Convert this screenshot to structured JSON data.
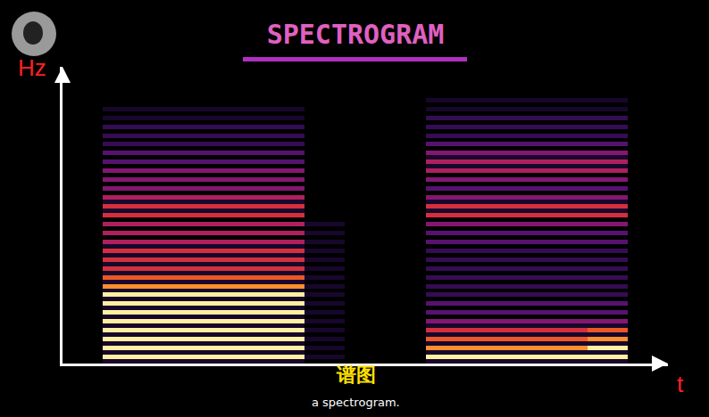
{
  "chart_data": {
    "type": "heatmap",
    "title": "SPECTROGRAM",
    "x_label": "t",
    "y_label": "Hz",
    "annotations": [
      "谱图",
      "a spectrogram."
    ],
    "grid": false,
    "tick_labels": false,
    "xlim": [
      -0.5,
      14.5
    ],
    "ylim": [
      -0.5,
      66.5
    ],
    "xticks": [],
    "yticks": [],
    "zlim": [
      0,
      9
    ],
    "x": [
      0,
      1,
      2,
      3,
      4,
      5,
      6,
      7,
      8,
      9,
      10,
      11,
      12,
      13,
      14
    ],
    "y": [
      0,
      1,
      2,
      3,
      4,
      5,
      6,
      7,
      8,
      9,
      10,
      11,
      12,
      13,
      14,
      15,
      16,
      17,
      18,
      19,
      20,
      21,
      22,
      23,
      24,
      25,
      26,
      27,
      28,
      29,
      30,
      31,
      32,
      33,
      34,
      35,
      36,
      37,
      38,
      39,
      40,
      41,
      42,
      43,
      44,
      45,
      46,
      47,
      48,
      49,
      50,
      51,
      52,
      53,
      54,
      55,
      56,
      57,
      58,
      59,
      60,
      61,
      62,
      63,
      64,
      65,
      66
    ],
    "z": [
      [
        0,
        1,
        1,
        1,
        1,
        1,
        0,
        0,
        0,
        1,
        1,
        1,
        1,
        1,
        0
      ],
      [
        0,
        9,
        9,
        9,
        9,
        9,
        1,
        0,
        0,
        9,
        9,
        9,
        9,
        9,
        0
      ],
      [
        0,
        1,
        1,
        1,
        1,
        1,
        0,
        0,
        0,
        1,
        1,
        1,
        1,
        1,
        0
      ],
      [
        0,
        9,
        9,
        9,
        9,
        9,
        1,
        0,
        0,
        8,
        8,
        8,
        8,
        9,
        0
      ],
      [
        0,
        1,
        1,
        1,
        1,
        1,
        0,
        0,
        0,
        1,
        1,
        1,
        1,
        1,
        0
      ],
      [
        0,
        9,
        9,
        9,
        9,
        9,
        1,
        0,
        0,
        7,
        7,
        7,
        7,
        8,
        0
      ],
      [
        0,
        1,
        1,
        1,
        1,
        1,
        0,
        0,
        0,
        1,
        1,
        1,
        1,
        1,
        0
      ],
      [
        0,
        9,
        9,
        9,
        9,
        9,
        1,
        0,
        0,
        6,
        6,
        6,
        6,
        7,
        0
      ],
      [
        0,
        1,
        1,
        1,
        1,
        1,
        0,
        0,
        0,
        1,
        1,
        1,
        1,
        1,
        0
      ],
      [
        0,
        9,
        9,
        9,
        9,
        9,
        1,
        0,
        0,
        4,
        4,
        4,
        4,
        4,
        0
      ],
      [
        0,
        1,
        1,
        1,
        1,
        1,
        0,
        0,
        0,
        0,
        0,
        0,
        0,
        0,
        0
      ],
      [
        0,
        9,
        9,
        9,
        9,
        9,
        1,
        0,
        0,
        3,
        3,
        3,
        3,
        3,
        0
      ],
      [
        0,
        1,
        1,
        1,
        1,
        1,
        0,
        0,
        0,
        0,
        0,
        0,
        0,
        0,
        0
      ],
      [
        0,
        9,
        9,
        9,
        9,
        9,
        1,
        0,
        0,
        3,
        3,
        3,
        3,
        3,
        0
      ],
      [
        0,
        1,
        1,
        1,
        1,
        1,
        0,
        0,
        0,
        0,
        0,
        0,
        0,
        0,
        0
      ],
      [
        0,
        9,
        9,
        9,
        9,
        9,
        1,
        0,
        0,
        2,
        2,
        2,
        2,
        2,
        0
      ],
      [
        0,
        1,
        1,
        1,
        1,
        1,
        0,
        0,
        0,
        0,
        0,
        0,
        0,
        0,
        0
      ],
      [
        0,
        8,
        8,
        8,
        8,
        8,
        1,
        0,
        0,
        2,
        2,
        2,
        2,
        2,
        0
      ],
      [
        0,
        1,
        1,
        1,
        1,
        1,
        0,
        0,
        0,
        0,
        0,
        0,
        0,
        0,
        0
      ],
      [
        0,
        7,
        7,
        7,
        7,
        7,
        1,
        0,
        0,
        2,
        2,
        2,
        2,
        2,
        0
      ],
      [
        0,
        1,
        1,
        1,
        1,
        1,
        0,
        0,
        0,
        0,
        0,
        0,
        0,
        0,
        0
      ],
      [
        0,
        6,
        6,
        6,
        6,
        6,
        1,
        0,
        0,
        2,
        2,
        2,
        2,
        2,
        0
      ],
      [
        0,
        1,
        1,
        1,
        1,
        1,
        0,
        0,
        0,
        0,
        0,
        0,
        0,
        0,
        0
      ],
      [
        0,
        6,
        6,
        6,
        6,
        6,
        1,
        0,
        0,
        2,
        2,
        2,
        2,
        2,
        0
      ],
      [
        0,
        1,
        1,
        1,
        1,
        1,
        0,
        0,
        0,
        0,
        0,
        0,
        0,
        0,
        0
      ],
      [
        0,
        6,
        6,
        6,
        6,
        6,
        1,
        0,
        0,
        2,
        2,
        2,
        2,
        2,
        0
      ],
      [
        0,
        1,
        1,
        1,
        1,
        1,
        0,
        0,
        0,
        0,
        0,
        0,
        0,
        0,
        0
      ],
      [
        0,
        5,
        5,
        5,
        5,
        5,
        1,
        0,
        0,
        3,
        3,
        3,
        3,
        3,
        0
      ],
      [
        0,
        0,
        0,
        0,
        0,
        0,
        0,
        0,
        0,
        0,
        0,
        0,
        0,
        0,
        0
      ],
      [
        0,
        5,
        5,
        5,
        5,
        5,
        1,
        0,
        0,
        3,
        3,
        3,
        3,
        3,
        0
      ],
      [
        0,
        0,
        0,
        0,
        0,
        0,
        0,
        0,
        0,
        0,
        0,
        0,
        0,
        0,
        0
      ],
      [
        0,
        5,
        5,
        5,
        5,
        5,
        1,
        0,
        0,
        4,
        4,
        4,
        4,
        4,
        0
      ],
      [
        0,
        0,
        0,
        0,
        0,
        0,
        0,
        0,
        0,
        0,
        0,
        0,
        0,
        0,
        0
      ],
      [
        0,
        6,
        6,
        6,
        6,
        6,
        0,
        0,
        0,
        6,
        6,
        6,
        6,
        6,
        0
      ],
      [
        0,
        1,
        1,
        1,
        1,
        1,
        0,
        0,
        0,
        1,
        1,
        1,
        1,
        1,
        0
      ],
      [
        0,
        6,
        6,
        6,
        6,
        6,
        0,
        0,
        0,
        6,
        6,
        6,
        6,
        6,
        0
      ],
      [
        0,
        1,
        1,
        1,
        1,
        1,
        0,
        0,
        0,
        1,
        1,
        1,
        1,
        1,
        0
      ],
      [
        0,
        5,
        5,
        5,
        5,
        5,
        0,
        0,
        0,
        4,
        4,
        4,
        4,
        4,
        0
      ],
      [
        0,
        0,
        0,
        0,
        0,
        0,
        0,
        0,
        0,
        0,
        0,
        0,
        0,
        0,
        0
      ],
      [
        0,
        4,
        4,
        4,
        4,
        4,
        0,
        0,
        0,
        3,
        3,
        3,
        3,
        3,
        0
      ],
      [
        0,
        0,
        0,
        0,
        0,
        0,
        0,
        0,
        0,
        0,
        0,
        0,
        0,
        0,
        0
      ],
      [
        0,
        4,
        4,
        4,
        4,
        4,
        0,
        0,
        0,
        4,
        4,
        4,
        4,
        4,
        0
      ],
      [
        0,
        0,
        0,
        0,
        0,
        0,
        0,
        0,
        0,
        0,
        0,
        0,
        0,
        0,
        0
      ],
      [
        0,
        4,
        4,
        4,
        4,
        4,
        0,
        0,
        0,
        5,
        5,
        5,
        5,
        5,
        0
      ],
      [
        0,
        0,
        0,
        0,
        0,
        0,
        0,
        0,
        0,
        1,
        1,
        1,
        1,
        1,
        0
      ],
      [
        0,
        3,
        3,
        3,
        3,
        3,
        0,
        0,
        0,
        5,
        5,
        5,
        5,
        5,
        0
      ],
      [
        0,
        0,
        0,
        0,
        0,
        0,
        0,
        0,
        0,
        1,
        1,
        1,
        1,
        1,
        0
      ],
      [
        0,
        3,
        3,
        3,
        3,
        3,
        0,
        0,
        0,
        4,
        4,
        4,
        4,
        4,
        0
      ],
      [
        0,
        0,
        0,
        0,
        0,
        0,
        0,
        0,
        0,
        0,
        0,
        0,
        0,
        0,
        0
      ],
      [
        0,
        2,
        2,
        2,
        2,
        2,
        0,
        0,
        0,
        3,
        3,
        3,
        3,
        3,
        0
      ],
      [
        0,
        0,
        0,
        0,
        0,
        0,
        0,
        0,
        0,
        0,
        0,
        0,
        0,
        0,
        0
      ],
      [
        0,
        2,
        2,
        2,
        2,
        2,
        0,
        0,
        0,
        2,
        2,
        2,
        2,
        2,
        0
      ],
      [
        0,
        0,
        0,
        0,
        0,
        0,
        0,
        0,
        0,
        0,
        0,
        0,
        0,
        0,
        0
      ],
      [
        0,
        2,
        2,
        2,
        2,
        2,
        0,
        0,
        0,
        2,
        2,
        2,
        2,
        2,
        0
      ],
      [
        0,
        0,
        0,
        0,
        0,
        0,
        0,
        0,
        0,
        0,
        0,
        0,
        0,
        0,
        0
      ],
      [
        0,
        1,
        1,
        1,
        1,
        1,
        0,
        0,
        0,
        2,
        2,
        2,
        2,
        2,
        0
      ],
      [
        0,
        0,
        0,
        0,
        0,
        0,
        0,
        0,
        0,
        0,
        0,
        0,
        0,
        0,
        0
      ],
      [
        0,
        1,
        1,
        1,
        1,
        1,
        0,
        0,
        0,
        1,
        1,
        1,
        1,
        1,
        0
      ],
      [
        0,
        0,
        0,
        0,
        0,
        0,
        0,
        0,
        0,
        0,
        0,
        0,
        0,
        0,
        0
      ],
      [
        0,
        0,
        0,
        0,
        0,
        0,
        0,
        0,
        0,
        1,
        1,
        1,
        1,
        1,
        0
      ],
      [
        0,
        0,
        0,
        0,
        0,
        0,
        0,
        0,
        0,
        0,
        0,
        0,
        0,
        0,
        0
      ],
      [
        0,
        0,
        0,
        0,
        0,
        0,
        0,
        0,
        0,
        0,
        0,
        0,
        0,
        0,
        0
      ],
      [
        0,
        0,
        0,
        0,
        0,
        0,
        0,
        0,
        0,
        0,
        0,
        0,
        0,
        0,
        0
      ],
      [
        0,
        0,
        0,
        0,
        0,
        0,
        0,
        0,
        0,
        0,
        0,
        0,
        0,
        0,
        0
      ],
      [
        0,
        0,
        0,
        0,
        0,
        0,
        0,
        0,
        0,
        0,
        0,
        0,
        0,
        0,
        0
      ],
      [
        0,
        0,
        0,
        0,
        0,
        0,
        0,
        0,
        0,
        0,
        0,
        0,
        0,
        0,
        0
      ],
      [
        0,
        0,
        0,
        0,
        0,
        0,
        0,
        0,
        0,
        0,
        0,
        0,
        0,
        0,
        0
      ]
    ]
  }
}
